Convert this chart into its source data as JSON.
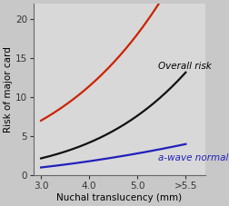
{
  "xlabel": "Nuchal translucency (mm)",
  "ylabel": "Risk of major card",
  "background_color": "#c8c8c8",
  "plot_bg_color": "#d8d8d8",
  "x_tick_labels": [
    "3.0",
    "4.0",
    "5.0",
    ">5.5"
  ],
  "y_ticks": [
    0,
    5,
    10,
    15,
    20
  ],
  "x_values": [
    0,
    1,
    2,
    3
  ],
  "red_curve": [
    7.0,
    11.5,
    18.0,
    28.0
  ],
  "black_curve": [
    2.2,
    4.0,
    8.0,
    13.0
  ],
  "blue_curve": [
    1.0,
    1.8,
    2.8,
    4.0
  ],
  "red_color": "#cc2200",
  "black_color": "#111111",
  "blue_color": "#2020bb",
  "label_overall": "Overall risk",
  "label_awave": "a-wave normal",
  "ylim": [
    0,
    22
  ],
  "xlim": [
    -0.15,
    3.4
  ],
  "label_fontsize": 7.5,
  "axis_fontsize": 7.5,
  "tick_fontsize": 7.5
}
